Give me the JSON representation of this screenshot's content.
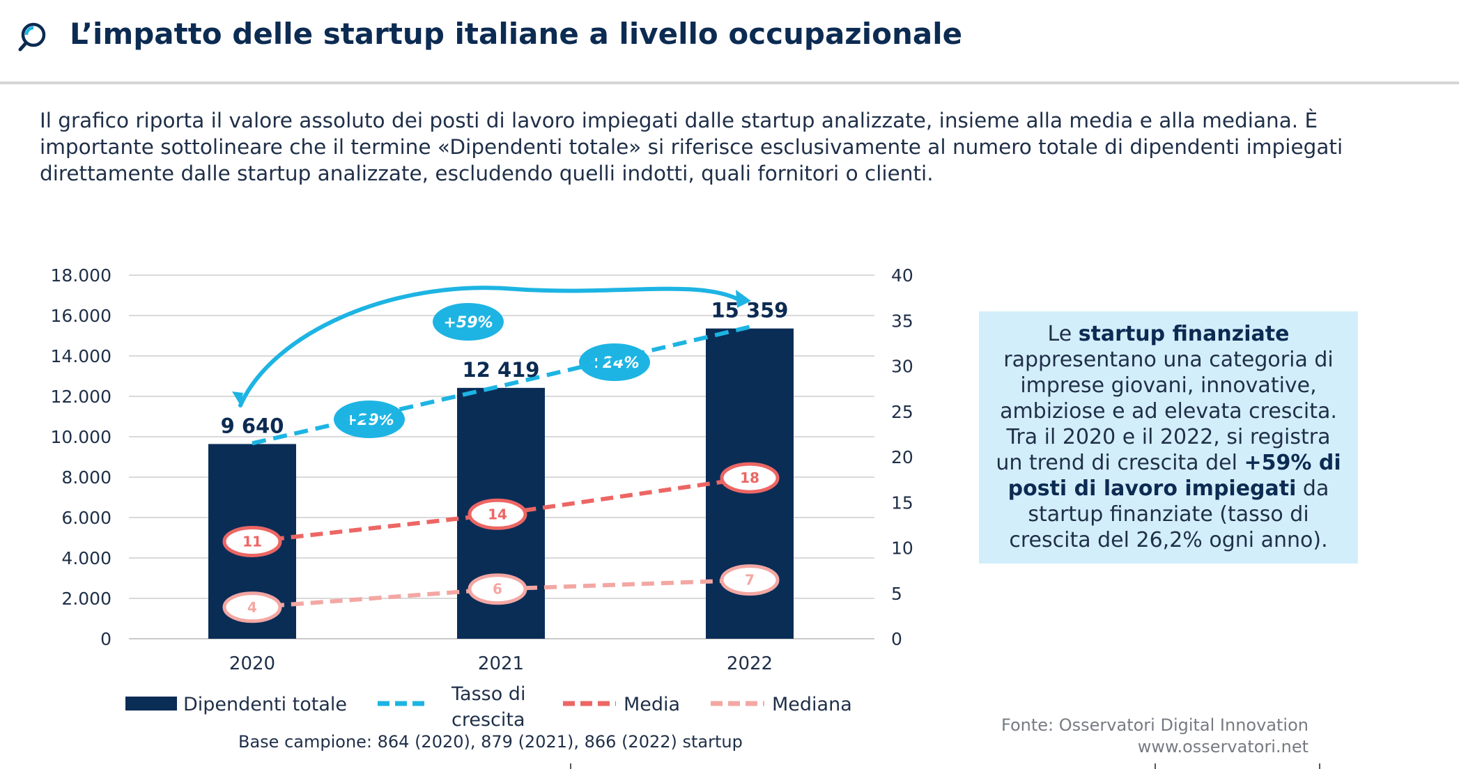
{
  "header": {
    "title": "L’impatto delle startup italiane a livello occupazionale"
  },
  "intro": "Il grafico riporta il valore assoluto dei posti di lavoro impiegati dalle startup analizzate, insieme alla media e alla mediana. È importante sottolineare che il termine «Dipendenti totale» si riferisce esclusivamente al numero totale di dipendenti impiegati direttamente dalle startup analizzate, escludendo quelli indotti, quali fornitori o clienti.",
  "colors": {
    "navy": "#0a2d56",
    "cyan": "#1db4e3",
    "media": "#ec6664",
    "mediana": "#f3a7a3",
    "callout_bg": "#d3eefb"
  },
  "chart_data": {
    "type": "bar",
    "categories": [
      "2020",
      "2021",
      "2022"
    ],
    "y_left": {
      "range": [
        0,
        18000
      ],
      "ticks": [
        "0",
        "2.000",
        "4.000",
        "6.000",
        "8.000",
        "10.000",
        "12.000",
        "14.000",
        "16.000",
        "18.000"
      ]
    },
    "y_right": {
      "range": [
        0,
        40
      ],
      "ticks": [
        "0",
        "5",
        "10",
        "15",
        "20",
        "25",
        "30",
        "35",
        "40"
      ]
    },
    "grid": true,
    "series": [
      {
        "name": "Dipendenti totale",
        "type": "bar",
        "axis": "left",
        "values": [
          9640,
          12419,
          15359
        ],
        "labels": [
          "9 640",
          "12 419",
          "15 359"
        ]
      },
      {
        "name": "Tasso di crescita",
        "type": "line",
        "style": "dashed",
        "axis": "right",
        "values": [
          21.5,
          27.8,
          34.3
        ]
      },
      {
        "name": "Media",
        "type": "line",
        "style": "dashed",
        "axis": "right",
        "values": [
          11,
          14,
          18
        ],
        "labels": [
          "11",
          "14",
          "18"
        ]
      },
      {
        "name": "Mediana",
        "type": "line",
        "style": "dashed",
        "axis": "right",
        "values": [
          4,
          6,
          7
        ],
        "labels": [
          "4",
          "6",
          "7"
        ]
      }
    ],
    "growth_badges": [
      "+29%",
      "+24%",
      "+59%"
    ],
    "legend": {
      "position": "bottom",
      "items": [
        {
          "label": "Dipendenti totale",
          "label_lines": [
            "Dipendenti totale"
          ]
        },
        {
          "label": "Tasso di crescita",
          "label_lines": [
            "Tasso di",
            "crescita"
          ]
        },
        {
          "label": "Media",
          "label_lines": [
            "Media"
          ]
        },
        {
          "label": "Mediana",
          "label_lines": [
            "Mediana"
          ]
        }
      ]
    }
  },
  "base_campione": "Base campione:  864 (2020), 879 (2021), 866 (2022) startup",
  "callout": {
    "t1": "Le ",
    "b1": "startup finanziate",
    "t2": " rappresentano una categoria di imprese giovani, innovative, ambiziose e ad elevata crescita. Tra il 2020 e il 2022, si registra un trend di crescita del ",
    "b2": "+59% di posti di lavoro impiegati",
    "t3": " da startup finanziate (tasso di crescita del 26,2% ogni anno)."
  },
  "source": {
    "line1": "Fonte: Osservatori Digital Innovation",
    "line2": "www.osservatori.net"
  }
}
